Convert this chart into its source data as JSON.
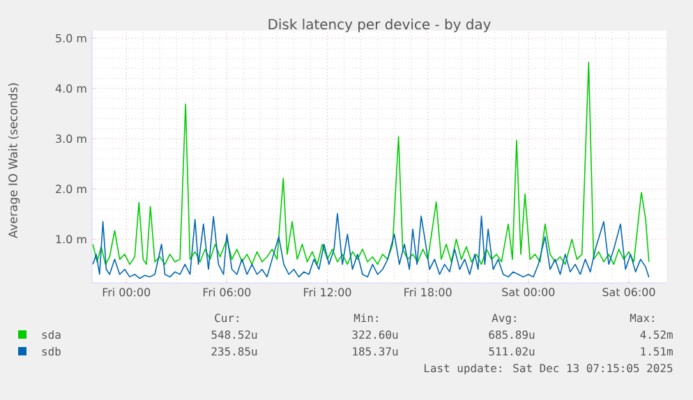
{
  "chart_data": {
    "type": "line",
    "title": "Disk latency per device - by day",
    "ylabel": "Average IO Wait (seconds)",
    "xlim": [
      "2025-12-11T21:57",
      "2025-12-13T08:15"
    ],
    "ylim": [
      0.13,
      5.15
    ],
    "xticks": [
      {
        "value": "2025-12-12T00:00",
        "label": "Fri 00:00"
      },
      {
        "value": "2025-12-12T06:00",
        "label": "Fri 06:00"
      },
      {
        "value": "2025-12-12T12:00",
        "label": "Fri 12:00"
      },
      {
        "value": "2025-12-12T18:00",
        "label": "Fri 18:00"
      },
      {
        "value": "2025-12-13T00:00",
        "label": "Sat 00:00"
      },
      {
        "value": "2025-12-13T06:00",
        "label": "Sat 06:00"
      }
    ],
    "yticks": [
      {
        "value": 1,
        "label": "1.0 m"
      },
      {
        "value": 2,
        "label": "2.0 m"
      },
      {
        "value": 3,
        "label": "3.0 m"
      },
      {
        "value": 4,
        "label": "4.0 m"
      },
      {
        "value": 5,
        "label": "5.0 m"
      }
    ],
    "grid": true,
    "legend": "bottom",
    "marker": "none",
    "line_style": "solid",
    "series": [
      {
        "name": "sda",
        "color": "#00cc00",
        "x": [
          "2025-12-11T22:00",
          "2025-12-11T22:15",
          "2025-12-11T22:30",
          "2025-12-11T22:45",
          "2025-12-11T23:00",
          "2025-12-11T23:18",
          "2025-12-11T23:36",
          "2025-12-11T23:54",
          "2025-12-12T00:12",
          "2025-12-12T00:30",
          "2025-12-12T00:45",
          "2025-12-12T01:00",
          "2025-12-12T01:12",
          "2025-12-12T01:26",
          "2025-12-12T01:42",
          "2025-12-12T02:00",
          "2025-12-12T02:18",
          "2025-12-12T02:36",
          "2025-12-12T02:54",
          "2025-12-12T03:12",
          "2025-12-12T03:32",
          "2025-12-12T03:48",
          "2025-12-12T04:06",
          "2025-12-12T04:24",
          "2025-12-12T04:42",
          "2025-12-12T05:00",
          "2025-12-12T05:18",
          "2025-12-12T05:36",
          "2025-12-12T06:00",
          "2025-12-12T06:18",
          "2025-12-12T06:36",
          "2025-12-12T06:54",
          "2025-12-12T07:12",
          "2025-12-12T07:30",
          "2025-12-12T07:48",
          "2025-12-12T08:06",
          "2025-12-12T08:24",
          "2025-12-12T08:42",
          "2025-12-12T09:00",
          "2025-12-12T09:22",
          "2025-12-12T09:36",
          "2025-12-12T09:54",
          "2025-12-12T10:12",
          "2025-12-12T10:30",
          "2025-12-12T10:48",
          "2025-12-12T11:06",
          "2025-12-12T11:24",
          "2025-12-12T11:42",
          "2025-12-12T12:00",
          "2025-12-12T12:18",
          "2025-12-12T12:36",
          "2025-12-12T12:54",
          "2025-12-12T13:12",
          "2025-12-12T13:30",
          "2025-12-12T13:48",
          "2025-12-12T14:06",
          "2025-12-12T14:24",
          "2025-12-12T14:42",
          "2025-12-12T15:00",
          "2025-12-12T15:18",
          "2025-12-12T15:36",
          "2025-12-12T15:54",
          "2025-12-12T16:15",
          "2025-12-12T16:30",
          "2025-12-12T16:48",
          "2025-12-12T17:06",
          "2025-12-12T17:24",
          "2025-12-12T17:42",
          "2025-12-12T18:00",
          "2025-12-12T18:30",
          "2025-12-12T18:48",
          "2025-12-12T19:06",
          "2025-12-12T19:24",
          "2025-12-12T19:42",
          "2025-12-12T20:00",
          "2025-12-12T20:18",
          "2025-12-12T20:36",
          "2025-12-12T20:54",
          "2025-12-12T21:12",
          "2025-12-12T21:30",
          "2025-12-12T21:48",
          "2025-12-12T22:06",
          "2025-12-12T22:24",
          "2025-12-12T22:48",
          "2025-12-12T23:03",
          "2025-12-12T23:18",
          "2025-12-12T23:33",
          "2025-12-12T23:48",
          "2025-12-13T00:06",
          "2025-12-13T00:24",
          "2025-12-13T00:42",
          "2025-12-13T01:00",
          "2025-12-13T01:18",
          "2025-12-13T01:36",
          "2025-12-13T01:54",
          "2025-12-13T02:12",
          "2025-12-13T02:36",
          "2025-12-13T02:54",
          "2025-12-13T03:12",
          "2025-12-13T03:36",
          "2025-12-13T03:54",
          "2025-12-13T04:12",
          "2025-12-13T04:30",
          "2025-12-13T04:48",
          "2025-12-13T05:06",
          "2025-12-13T05:24",
          "2025-12-13T05:42",
          "2025-12-13T06:00",
          "2025-12-13T06:18",
          "2025-12-13T06:45",
          "2025-12-13T07:00",
          "2025-12-13T07:12"
        ],
        "values": [
          0.9,
          0.55,
          0.85,
          0.5,
          0.65,
          1.17,
          0.6,
          0.7,
          0.5,
          0.65,
          1.73,
          0.6,
          0.5,
          1.65,
          0.55,
          0.65,
          0.5,
          0.7,
          0.55,
          0.6,
          3.69,
          0.6,
          0.75,
          0.55,
          0.8,
          0.6,
          0.9,
          0.65,
          1.0,
          0.6,
          0.8,
          0.55,
          0.7,
          0.5,
          0.75,
          0.55,
          0.65,
          0.8,
          0.6,
          2.21,
          0.7,
          1.35,
          0.6,
          0.9,
          0.55,
          0.75,
          0.5,
          0.9,
          0.6,
          0.8,
          0.55,
          0.7,
          0.5,
          0.75,
          0.6,
          0.8,
          0.55,
          0.65,
          0.5,
          0.7,
          0.6,
          0.9,
          3.04,
          0.8,
          0.6,
          0.7,
          0.55,
          0.8,
          0.6,
          1.74,
          0.6,
          0.9,
          0.55,
          1.0,
          0.6,
          0.85,
          0.55,
          0.7,
          0.5,
          0.8,
          0.6,
          0.7,
          0.55,
          1.3,
          0.6,
          2.97,
          0.7,
          1.9,
          0.6,
          0.7,
          0.55,
          1.3,
          0.7,
          0.55,
          0.65,
          0.5,
          1.0,
          0.6,
          0.7,
          4.52,
          0.6,
          0.75,
          0.55,
          0.7,
          0.5,
          0.8,
          0.6,
          0.75,
          0.55,
          1.93,
          1.4,
          0.55
        ]
      },
      {
        "name": "sdb",
        "color": "#0066b3",
        "x": [
          "2025-12-11T22:00",
          "2025-12-11T22:12",
          "2025-12-11T22:24",
          "2025-12-11T22:36",
          "2025-12-11T22:48",
          "2025-12-11T23:00",
          "2025-12-11T23:18",
          "2025-12-11T23:36",
          "2025-12-11T23:54",
          "2025-12-12T00:12",
          "2025-12-12T00:30",
          "2025-12-12T00:48",
          "2025-12-12T01:06",
          "2025-12-12T01:24",
          "2025-12-12T01:42",
          "2025-12-12T02:06",
          "2025-12-12T02:18",
          "2025-12-12T02:36",
          "2025-12-12T02:54",
          "2025-12-12T03:12",
          "2025-12-12T03:30",
          "2025-12-12T03:48",
          "2025-12-12T04:06",
          "2025-12-12T04:18",
          "2025-12-12T04:36",
          "2025-12-12T04:54",
          "2025-12-12T05:12",
          "2025-12-12T05:30",
          "2025-12-12T05:48",
          "2025-12-12T06:00",
          "2025-12-12T06:18",
          "2025-12-12T06:36",
          "2025-12-12T06:54",
          "2025-12-12T07:12",
          "2025-12-12T07:30",
          "2025-12-12T07:48",
          "2025-12-12T08:06",
          "2025-12-12T08:24",
          "2025-12-12T08:42",
          "2025-12-12T09:06",
          "2025-12-12T09:24",
          "2025-12-12T09:42",
          "2025-12-12T10:00",
          "2025-12-12T10:18",
          "2025-12-12T10:36",
          "2025-12-12T10:54",
          "2025-12-12T11:12",
          "2025-12-12T11:30",
          "2025-12-12T11:48",
          "2025-12-12T12:06",
          "2025-12-12T12:24",
          "2025-12-12T12:36",
          "2025-12-12T12:54",
          "2025-12-12T13:12",
          "2025-12-12T13:30",
          "2025-12-12T13:48",
          "2025-12-12T14:06",
          "2025-12-12T14:24",
          "2025-12-12T14:42",
          "2025-12-12T15:00",
          "2025-12-12T15:18",
          "2025-12-12T15:36",
          "2025-12-12T16:00",
          "2025-12-12T16:18",
          "2025-12-12T16:36",
          "2025-12-12T16:54",
          "2025-12-12T17:06",
          "2025-12-12T17:21",
          "2025-12-12T17:36",
          "2025-12-12T17:48",
          "2025-12-12T18:06",
          "2025-12-12T18:24",
          "2025-12-12T18:42",
          "2025-12-12T19:00",
          "2025-12-12T19:18",
          "2025-12-12T19:36",
          "2025-12-12T19:54",
          "2025-12-12T20:12",
          "2025-12-12T20:30",
          "2025-12-12T20:48",
          "2025-12-12T21:00",
          "2025-12-12T21:12",
          "2025-12-12T21:24",
          "2025-12-12T21:36",
          "2025-12-12T21:54",
          "2025-12-12T22:12",
          "2025-12-12T22:30",
          "2025-12-12T22:48",
          "2025-12-12T23:06",
          "2025-12-12T23:24",
          "2025-12-12T23:42",
          "2025-12-13T00:00",
          "2025-12-13T00:18",
          "2025-12-13T00:36",
          "2025-12-13T01:00",
          "2025-12-13T01:18",
          "2025-12-13T01:36",
          "2025-12-13T01:54",
          "2025-12-13T02:12",
          "2025-12-13T02:30",
          "2025-12-13T02:48",
          "2025-12-13T03:06",
          "2025-12-13T03:24",
          "2025-12-13T03:42",
          "2025-12-13T04:00",
          "2025-12-13T04:30",
          "2025-12-13T04:48",
          "2025-12-13T05:06",
          "2025-12-13T05:30",
          "2025-12-13T05:48",
          "2025-12-13T06:06",
          "2025-12-13T06:24",
          "2025-12-13T06:42",
          "2025-12-13T07:00",
          "2025-12-13T07:12"
        ],
        "values": [
          0.5,
          0.7,
          0.3,
          1.35,
          0.4,
          0.3,
          0.6,
          0.3,
          0.4,
          0.25,
          0.3,
          0.22,
          0.28,
          0.25,
          0.3,
          0.9,
          0.3,
          0.25,
          0.35,
          0.3,
          0.5,
          0.3,
          1.39,
          0.5,
          1.3,
          0.4,
          1.45,
          0.5,
          0.3,
          1.1,
          0.4,
          0.3,
          0.6,
          0.3,
          0.5,
          0.3,
          0.4,
          0.25,
          0.6,
          1.05,
          0.5,
          0.3,
          0.4,
          0.25,
          0.35,
          0.3,
          0.6,
          0.4,
          0.9,
          0.5,
          0.8,
          1.51,
          0.5,
          1.1,
          0.4,
          0.7,
          0.3,
          0.25,
          0.5,
          0.3,
          0.4,
          0.6,
          1.1,
          0.5,
          0.9,
          0.4,
          1.2,
          0.5,
          1.46,
          1.05,
          0.4,
          0.6,
          0.3,
          0.5,
          0.35,
          0.8,
          0.4,
          0.6,
          0.3,
          0.7,
          0.4,
          1.46,
          0.5,
          1.2,
          0.4,
          0.6,
          0.3,
          0.25,
          0.35,
          0.3,
          0.25,
          0.3,
          0.25,
          0.5,
          1.05,
          0.4,
          0.6,
          0.3,
          0.7,
          0.35,
          0.5,
          0.3,
          0.6,
          0.35,
          0.8,
          1.35,
          0.5,
          0.8,
          1.3,
          0.4,
          0.7,
          0.35,
          0.6,
          0.45,
          0.24
        ]
      }
    ],
    "annotations": [
      "Cur:",
      "Min:",
      "Avg:",
      "Max:",
      "548.52u",
      "322.60u",
      "685.89u",
      "4.52m",
      "235.85u",
      "185.37u",
      "511.02u",
      "1.51m",
      "Last update: Sat Dec 13 07:15:05 2025"
    ]
  }
}
